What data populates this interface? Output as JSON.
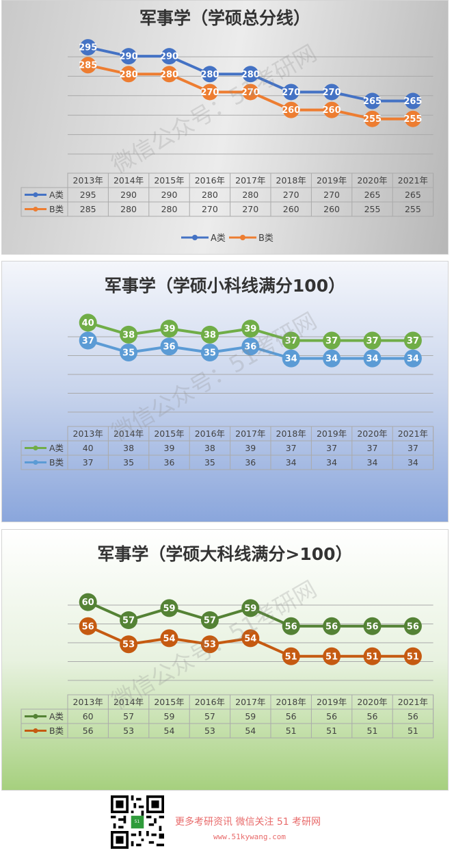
{
  "charts": [
    {
      "title": "军事学（学硕总分线）",
      "watermark": "微信公众号：51考研网",
      "style": "gray",
      "colors": {
        "A": "#4472c4",
        "B": "#ed7d31"
      },
      "bottom_legend": true
    },
    {
      "title": "军事学（学硕小科线满分100）",
      "watermark": "微信公众号：51考研网",
      "style": "blue",
      "colors": {
        "A": "#70ad47",
        "B": "#5b9bd5"
      },
      "bottom_legend": false
    },
    {
      "title": "军事学（学硕大科线满分>100）",
      "watermark": "微信公众号：51考研网",
      "style": "green",
      "colors": {
        "A": "#548235",
        "B": "#c55a11"
      },
      "bottom_legend": false
    }
  ],
  "chart_data": [
    {
      "type": "line",
      "title": "军事学（学硕总分线）",
      "categories": [
        "2013年",
        "2014年",
        "2015年",
        "2016年",
        "2017年",
        "2018年",
        "2019年",
        "2020年",
        "2021年"
      ],
      "series": [
        {
          "name": "A类",
          "values": [
            295,
            290,
            290,
            280,
            280,
            270,
            270,
            265,
            265
          ]
        },
        {
          "name": "B类",
          "values": [
            285,
            280,
            280,
            270,
            270,
            260,
            260,
            255,
            255
          ]
        }
      ],
      "ylim": [
        235,
        300
      ],
      "grid": true,
      "legend": "bottom",
      "data_table": true
    },
    {
      "type": "line",
      "title": "军事学（学硕小科线满分100）",
      "categories": [
        "2013年",
        "2014年",
        "2015年",
        "2016年",
        "2017年",
        "2018年",
        "2019年",
        "2020年",
        "2021年"
      ],
      "series": [
        {
          "name": "A类",
          "values": [
            40,
            38,
            39,
            38,
            39,
            37,
            37,
            37,
            37
          ]
        },
        {
          "name": "B类",
          "values": [
            37,
            35,
            36,
            35,
            36,
            34,
            34,
            34,
            34
          ]
        }
      ],
      "ylim": [
        25,
        42
      ],
      "grid": true,
      "legend": "data-table",
      "data_table": true
    },
    {
      "type": "line",
      "title": "军事学（学硕大科线满分>100）",
      "categories": [
        "2013年",
        "2014年",
        "2015年",
        "2016年",
        "2017年",
        "2018年",
        "2019年",
        "2020年",
        "2021年"
      ],
      "series": [
        {
          "name": "A类",
          "values": [
            60,
            57,
            59,
            57,
            59,
            56,
            56,
            56,
            56
          ]
        },
        {
          "name": "B类",
          "values": [
            56,
            53,
            54,
            53,
            54,
            51,
            51,
            51,
            51
          ]
        }
      ],
      "ylim": [
        47,
        62
      ],
      "grid": true,
      "legend": "data-table",
      "data_table": true
    }
  ],
  "footer": {
    "line1": "更多考研资讯 微信关注 51 考研网",
    "line2": "www.51kywang.com",
    "qr_logo_text": "51"
  }
}
